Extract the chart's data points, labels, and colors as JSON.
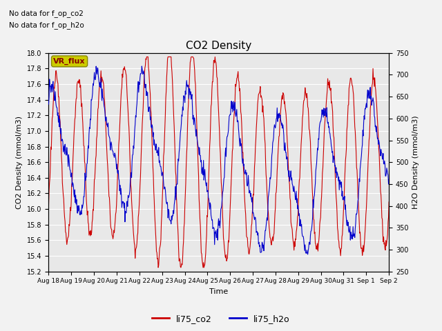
{
  "title": "CO2 Density",
  "xlabel": "Time",
  "ylabel_left": "CO2 Density (mmol/m3)",
  "ylabel_right": "H2O Density (mmol/m3)",
  "ylim_left": [
    15.2,
    18.0
  ],
  "ylim_right": [
    250,
    750
  ],
  "color_co2": "#cc0000",
  "color_h2o": "#0000cc",
  "note_line1": "No data for f_op_co2",
  "note_line2": "No data for f_op_h2o",
  "vr_flux_label": "VR_flux",
  "vr_flux_bg": "#cccc00",
  "vr_flux_fg": "#880000",
  "legend_co2": "li75_co2",
  "legend_h2o": "li75_h2o",
  "bg_color": "#e8e8e8",
  "fig_bg": "#f2f2f2",
  "x_tick_labels": [
    "Aug 18",
    "Aug 19",
    "Aug 20",
    "Aug 21",
    "Aug 22",
    "Aug 23",
    "Aug 24",
    "Aug 25",
    "Aug 26",
    "Aug 27",
    "Aug 28",
    "Aug 29",
    "Aug 30",
    "Aug 31",
    "Sep 1",
    "Sep 2"
  ],
  "x_tick_positions": [
    0,
    1,
    2,
    3,
    4,
    5,
    6,
    7,
    8,
    9,
    10,
    11,
    12,
    13,
    14,
    15
  ],
  "yticks_left": [
    15.2,
    15.4,
    15.6,
    15.8,
    16.0,
    16.2,
    16.4,
    16.6,
    16.8,
    17.0,
    17.2,
    17.4,
    17.6,
    17.8,
    18.0
  ],
  "yticks_right": [
    250,
    300,
    350,
    400,
    450,
    500,
    550,
    600,
    650,
    700,
    750
  ]
}
